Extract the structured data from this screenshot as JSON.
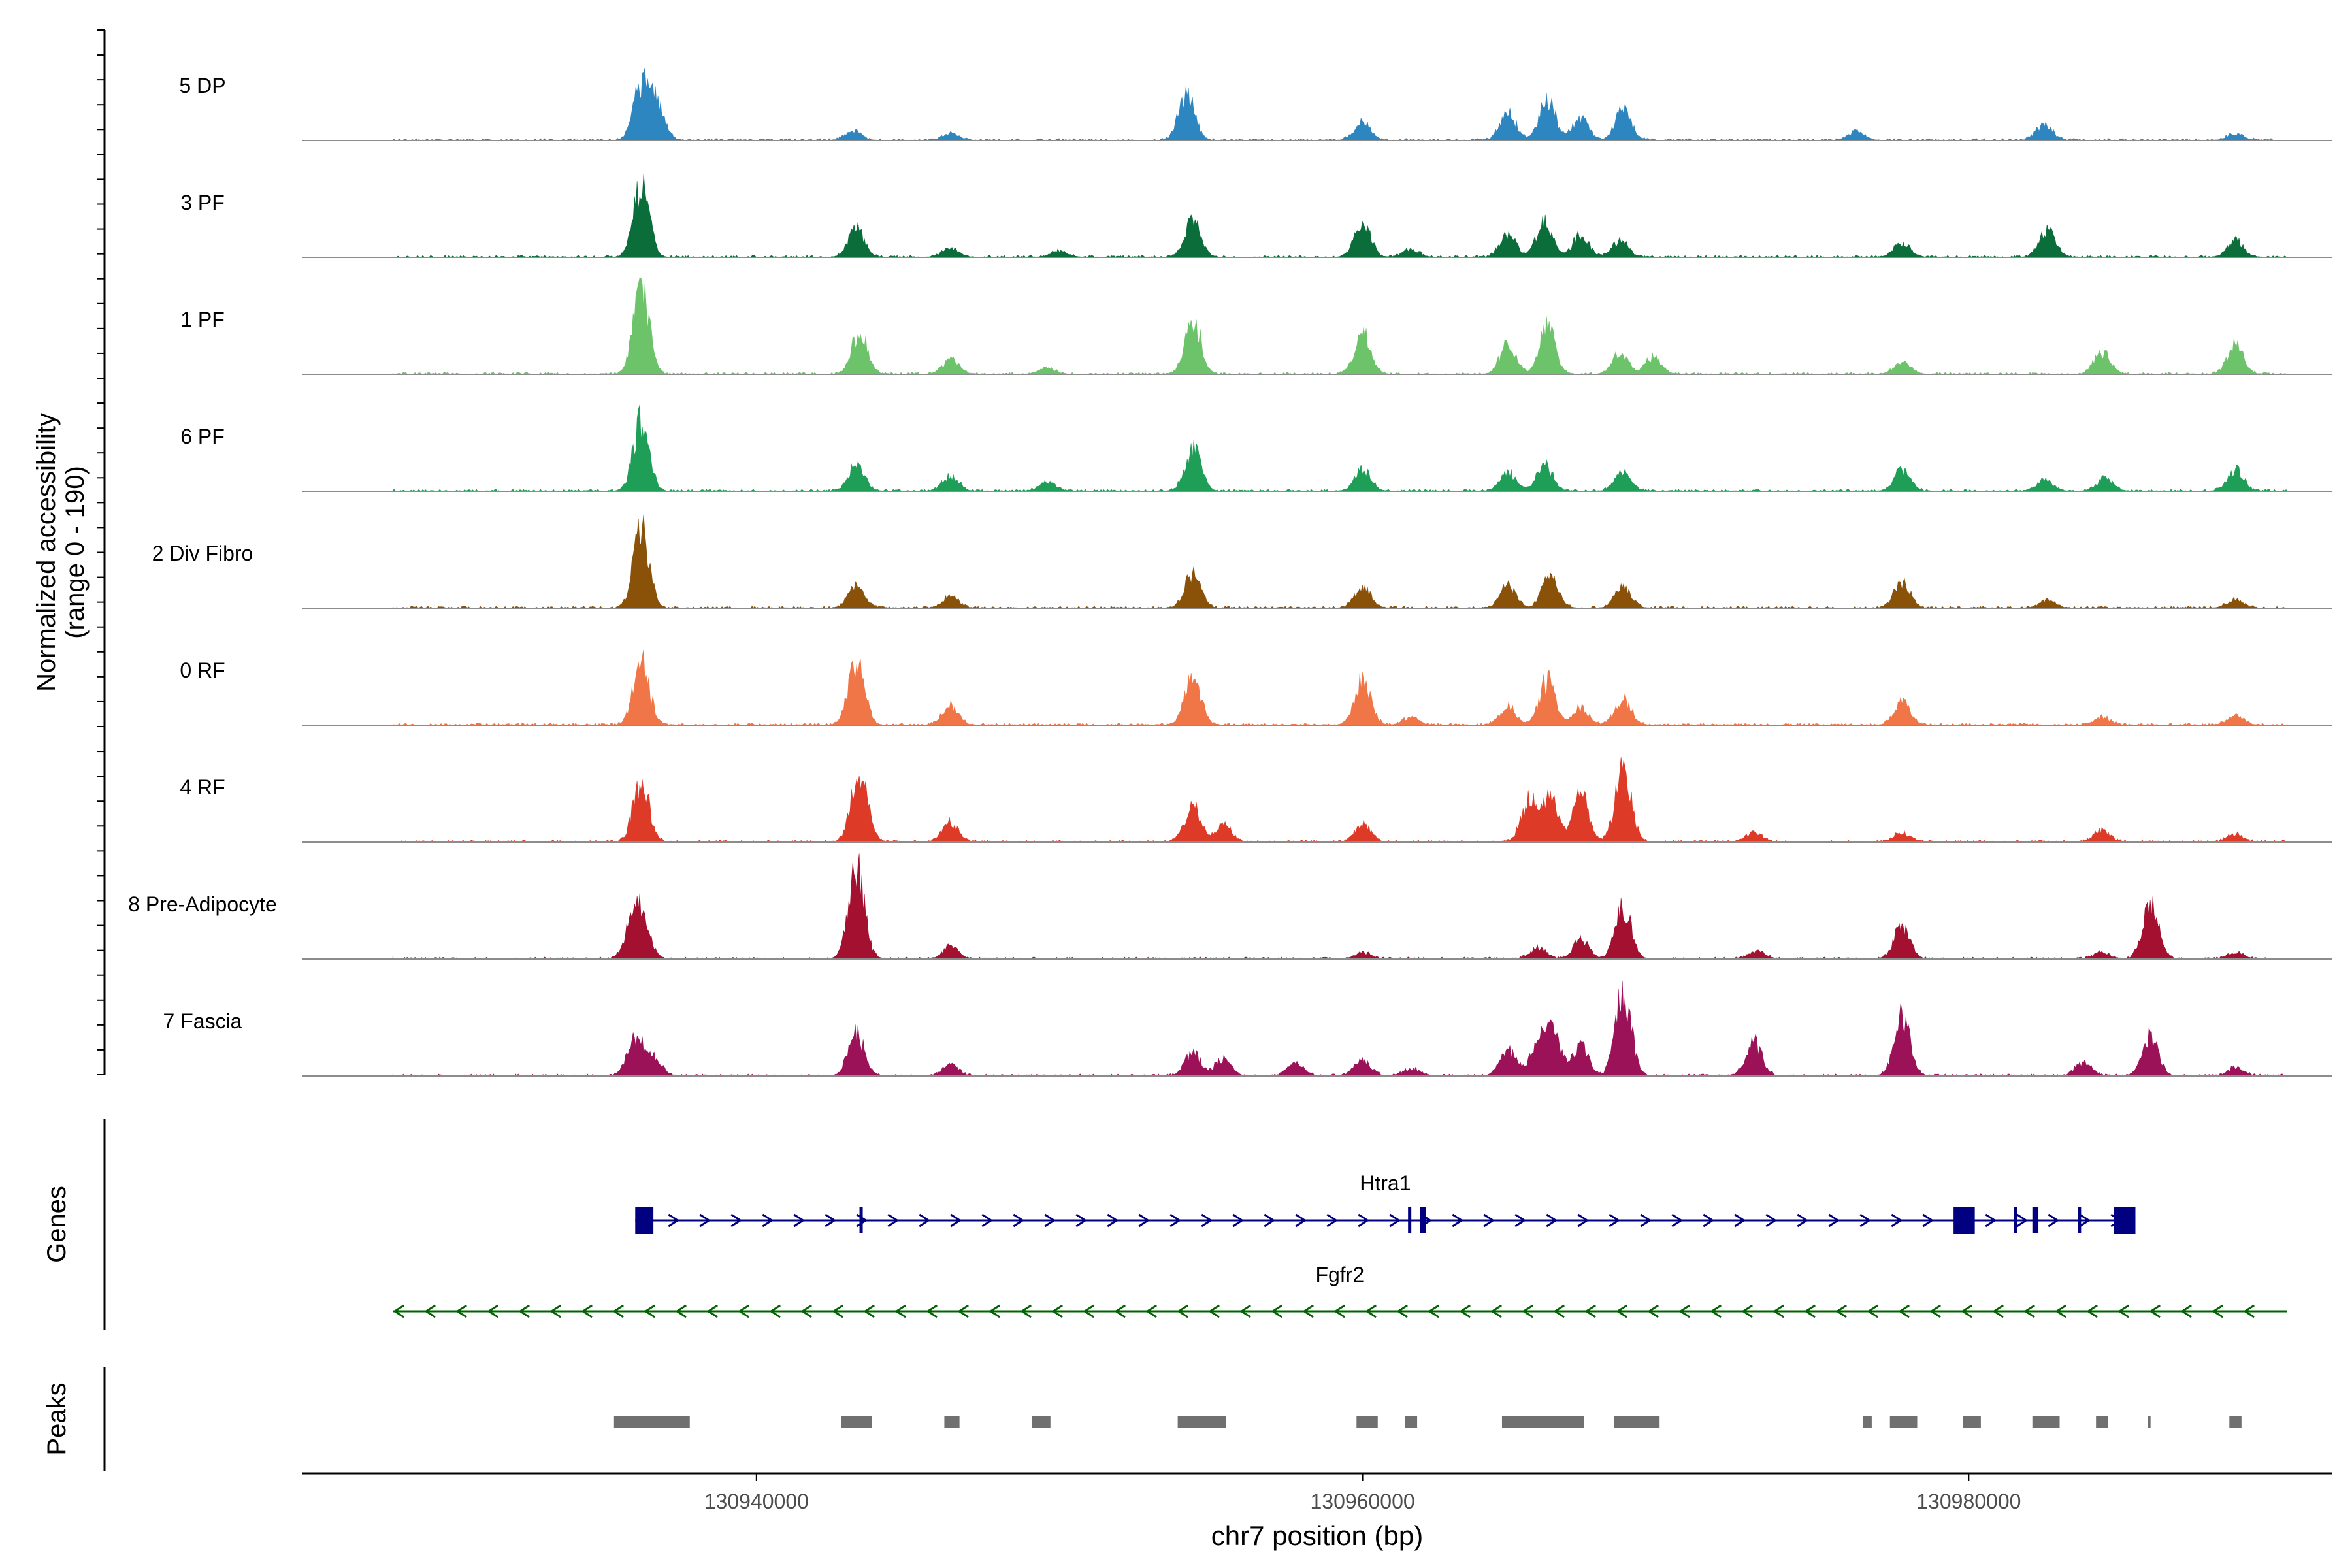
{
  "chart_data": {
    "type": "area",
    "title": "",
    "ylabel_line1": "Normalized accessibility",
    "ylabel_line2": "(range 0 - 190)",
    "ylim": [
      0,
      190
    ],
    "xlabel": "chr7 position (bp)",
    "xlim": [
      130925000,
      130992000
    ],
    "xticks": [
      {
        "value": 130940000,
        "label": "130940000"
      },
      {
        "value": 130960000,
        "label": "130960000"
      },
      {
        "value": 130980000,
        "label": "130980000"
      }
    ],
    "track_range": [
      130928000,
      130990500
    ],
    "tracks": [
      {
        "name": "5 DP",
        "color": "#2E86C1",
        "peaks": [
          [
            130936200,
            70
          ],
          [
            130936700,
            48
          ],
          [
            130943200,
            12
          ],
          [
            130946400,
            10
          ],
          [
            130954200,
            60
          ],
          [
            130960000,
            24
          ],
          [
            130964800,
            35
          ],
          [
            130966100,
            55
          ],
          [
            130967200,
            28
          ],
          [
            130968600,
            40
          ],
          [
            130976300,
            12
          ],
          [
            130982500,
            20
          ],
          [
            130988800,
            8
          ]
        ]
      },
      {
        "name": "3 PF",
        "color": "#0B6E3A",
        "peaks": [
          [
            130936200,
            95
          ],
          [
            130943300,
            38
          ],
          [
            130946400,
            12
          ],
          [
            130950000,
            8
          ],
          [
            130954400,
            52
          ],
          [
            130960000,
            45
          ],
          [
            130961600,
            10
          ],
          [
            130964800,
            30
          ],
          [
            130966000,
            50
          ],
          [
            130967200,
            30
          ],
          [
            130968500,
            22
          ],
          [
            130977800,
            18
          ],
          [
            130982600,
            38
          ],
          [
            130988800,
            22
          ]
        ]
      },
      {
        "name": "1 PF",
        "color": "#6CC36A",
        "peaks": [
          [
            130936200,
            110
          ],
          [
            130943400,
            55
          ],
          [
            130946400,
            20
          ],
          [
            130949600,
            8
          ],
          [
            130954400,
            75
          ],
          [
            130960000,
            55
          ],
          [
            130964800,
            38
          ],
          [
            130966100,
            60
          ],
          [
            130968500,
            28
          ],
          [
            130969600,
            22
          ],
          [
            130977800,
            15
          ],
          [
            130984400,
            30
          ],
          [
            130988800,
            38
          ]
        ]
      },
      {
        "name": "6 PF",
        "color": "#1E9E57",
        "peaks": [
          [
            130936200,
            95
          ],
          [
            130943300,
            35
          ],
          [
            130946400,
            20
          ],
          [
            130949600,
            12
          ],
          [
            130954400,
            55
          ],
          [
            130960000,
            28
          ],
          [
            130964800,
            25
          ],
          [
            130966000,
            35
          ],
          [
            130968600,
            25
          ],
          [
            130977800,
            28
          ],
          [
            130982500,
            15
          ],
          [
            130984500,
            18
          ],
          [
            130988800,
            28
          ]
        ]
      },
      {
        "name": "2 Div Fibro",
        "color": "#8A5208",
        "peaks": [
          [
            130936200,
            105
          ],
          [
            130943300,
            30
          ],
          [
            130946400,
            15
          ],
          [
            130954400,
            45
          ],
          [
            130960000,
            28
          ],
          [
            130964800,
            30
          ],
          [
            130966200,
            45
          ],
          [
            130968600,
            30
          ],
          [
            130977800,
            35
          ],
          [
            130982600,
            10
          ],
          [
            130988800,
            12
          ]
        ]
      },
      {
        "name": "0 RF",
        "color": "#F07547",
        "peaks": [
          [
            130936200,
            85
          ],
          [
            130943300,
            85
          ],
          [
            130946400,
            25
          ],
          [
            130954400,
            65
          ],
          [
            130960000,
            60
          ],
          [
            130961600,
            10
          ],
          [
            130964800,
            25
          ],
          [
            130966100,
            60
          ],
          [
            130967200,
            22
          ],
          [
            130968600,
            35
          ],
          [
            130977800,
            30
          ],
          [
            130984400,
            10
          ],
          [
            130988800,
            12
          ]
        ]
      },
      {
        "name": "4 RF",
        "color": "#DD3A28",
        "peaks": [
          [
            130936200,
            80
          ],
          [
            130943400,
            100
          ],
          [
            130946400,
            25
          ],
          [
            130954400,
            50
          ],
          [
            130955400,
            22
          ],
          [
            130960000,
            22
          ],
          [
            130965500,
            55
          ],
          [
            130966200,
            60
          ],
          [
            130967200,
            62
          ],
          [
            130968600,
            95
          ],
          [
            130972900,
            12
          ],
          [
            130977800,
            12
          ],
          [
            130984400,
            15
          ],
          [
            130988800,
            10
          ]
        ]
      },
      {
        "name": "8 Pre-Adipocyte",
        "color": "#A31030",
        "peaks": [
          [
            130935900,
            35
          ],
          [
            130936200,
            55
          ],
          [
            130943300,
            120
          ],
          [
            130946400,
            15
          ],
          [
            130960000,
            8
          ],
          [
            130965800,
            15
          ],
          [
            130967200,
            25
          ],
          [
            130968600,
            70
          ],
          [
            130973000,
            10
          ],
          [
            130977800,
            45
          ],
          [
            130984400,
            8
          ],
          [
            130986000,
            70
          ],
          [
            130988800,
            8
          ]
        ]
      },
      {
        "name": "7 Fascia",
        "color": "#9C1258",
        "peaks": [
          [
            130936000,
            50
          ],
          [
            130936600,
            25
          ],
          [
            130943300,
            55
          ],
          [
            130946400,
            15
          ],
          [
            130954400,
            30
          ],
          [
            130955400,
            22
          ],
          [
            130957800,
            18
          ],
          [
            130960000,
            22
          ],
          [
            130961600,
            10
          ],
          [
            130964800,
            35
          ],
          [
            130965800,
            45
          ],
          [
            130966300,
            55
          ],
          [
            130967200,
            38
          ],
          [
            130968600,
            110
          ],
          [
            130972900,
            45
          ],
          [
            130977800,
            80
          ],
          [
            130986000,
            50
          ],
          [
            130983800,
            18
          ],
          [
            130988800,
            10
          ]
        ]
      }
    ],
    "genes_label": "Genes",
    "genes": [
      {
        "name": "Htra1",
        "strand": "+",
        "color": "#000080",
        "start": 130936000,
        "end": 130985500,
        "exons": [
          [
            130936000,
            130936600
          ],
          [
            130943400,
            130943500
          ],
          [
            130961500,
            130961600
          ],
          [
            130961900,
            130962100
          ],
          [
            130979500,
            130980200
          ],
          [
            130981500,
            130981600
          ],
          [
            130982100,
            130982300
          ],
          [
            130983600,
            130983700
          ],
          [
            130984800,
            130985500
          ]
        ]
      },
      {
        "name": "Fgfr2",
        "strand": "-",
        "color": "#006400",
        "start": 130928000,
        "end": 130990500,
        "exons": []
      }
    ],
    "peaks_label": "Peaks",
    "peak_regions": [
      [
        130935300,
        130937800
      ],
      [
        130942800,
        130943800
      ],
      [
        130946200,
        130946700
      ],
      [
        130949100,
        130949700
      ],
      [
        130953900,
        130955500
      ],
      [
        130959800,
        130960500
      ],
      [
        130961400,
        130961800
      ],
      [
        130964600,
        130967300
      ],
      [
        130968300,
        130969800
      ],
      [
        130976500,
        130976800
      ],
      [
        130977400,
        130978300
      ],
      [
        130979800,
        130980400
      ],
      [
        130982100,
        130983000
      ],
      [
        130984200,
        130984600
      ],
      [
        130985900,
        130986000
      ],
      [
        130988600,
        130989000
      ]
    ]
  }
}
